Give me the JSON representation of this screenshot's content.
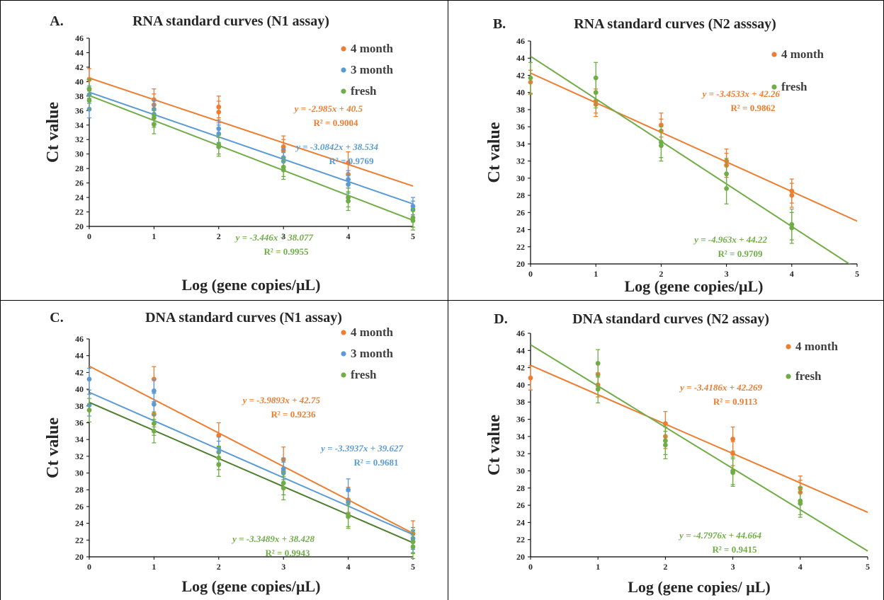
{
  "colors": {
    "orange": "#ED7D31",
    "blue": "#5B9BD5",
    "green": "#70AD47",
    "darkgreen": "#4E7F2E",
    "axis": "#000000",
    "grid": "#D9D9D9"
  },
  "chart_data": [
    {
      "type": "scatter",
      "panel_label": "A.",
      "title": "RNA standard curves (N1 assay)",
      "xlabel": "Log (gene copies/µL)",
      "ylabel": "Ct value",
      "xlim": [
        0,
        5
      ],
      "ylim": [
        20,
        46
      ],
      "x_ticks": [
        0,
        1,
        2,
        3,
        4,
        5
      ],
      "y_ticks": [
        20,
        22,
        24,
        26,
        28,
        30,
        32,
        34,
        36,
        38,
        40,
        42,
        44,
        46
      ],
      "grid": false,
      "legend_position": "top-right",
      "series": [
        {
          "name": "4 month",
          "color": "orange",
          "points": [
            [
              0,
              40.3
            ],
            [
              0,
              39.0
            ],
            [
              1,
              37.5
            ],
            [
              1,
              36.8
            ],
            [
              2,
              36.5
            ],
            [
              2,
              35.8
            ],
            [
              3,
              31.0
            ],
            [
              3,
              30.5
            ],
            [
              4,
              28.8
            ],
            [
              4,
              27.2
            ]
          ],
          "error": 1.5,
          "fit": {
            "slope": -2.985,
            "intercept": 40.5,
            "equation": "y = -2.985x + 40.5",
            "r2": "R² = 0.9004"
          }
        },
        {
          "name": "3 month",
          "color": "blue",
          "points": [
            [
              0,
              38.2
            ],
            [
              0,
              36.2
            ],
            [
              1,
              36.2
            ],
            [
              1,
              35.5
            ],
            [
              2,
              33.5
            ],
            [
              2,
              32.8
            ],
            [
              3,
              29.5
            ],
            [
              3,
              29.0
            ],
            [
              4,
              26.5
            ],
            [
              4,
              25.8
            ],
            [
              5,
              22.8
            ],
            [
              5,
              22.3
            ]
          ],
          "error": 1.2,
          "fit": {
            "slope": -3.0842,
            "intercept": 38.534,
            "equation": "y = -3.0842x + 38.534",
            "r2": "R² = 0.9769"
          }
        },
        {
          "name": "fresh",
          "color": "green",
          "points": [
            [
              0,
              39.0
            ],
            [
              0,
              37.4
            ],
            [
              1,
              35.0
            ],
            [
              1,
              34.1
            ],
            [
              2,
              31.3
            ],
            [
              2,
              31.0
            ],
            [
              3,
              28.2
            ],
            [
              3,
              27.8
            ],
            [
              4,
              24.0
            ],
            [
              4,
              23.5
            ],
            [
              5,
              21.2
            ],
            [
              5,
              20.8
            ]
          ],
          "error": 1.3,
          "fit": {
            "slope": -3.446,
            "intercept": 38.077,
            "equation": "y = -3.446x + 38.077",
            "r2": "R² = 0.9955"
          }
        }
      ]
    },
    {
      "type": "scatter",
      "panel_label": "B.",
      "title": "RNA standard curves  (N2 asssay)",
      "xlabel": "Log (gene copies/µL)",
      "ylabel": "Ct value",
      "xlim": [
        0,
        5
      ],
      "ylim": [
        20,
        46
      ],
      "x_ticks": [
        0,
        1,
        2,
        3,
        4,
        5
      ],
      "y_ticks": [
        20,
        22,
        24,
        26,
        28,
        30,
        32,
        34,
        36,
        38,
        40,
        42,
        44,
        46
      ],
      "grid": false,
      "legend_position": "top-right",
      "series": [
        {
          "name": "4 month",
          "color": "orange",
          "points": [
            [
              0,
              41.2
            ],
            [
              1,
              39.0
            ],
            [
              1,
              38.6
            ],
            [
              2,
              36.2
            ],
            [
              2,
              35.5
            ],
            [
              3,
              32.0
            ],
            [
              3,
              31.5
            ],
            [
              4,
              28.5
            ],
            [
              4,
              28.0
            ]
          ],
          "error": 1.4,
          "fit": {
            "slope": -3.4533,
            "intercept": 42.26,
            "equation": "y = -3.4533x + 42.26",
            "r2": "R² = 0.9862"
          }
        },
        {
          "name": "fresh",
          "color": "green",
          "points": [
            [
              0,
              41.7
            ],
            [
              1,
              41.7
            ],
            [
              1,
              40.0
            ],
            [
              2,
              34.2
            ],
            [
              2,
              33.8
            ],
            [
              3,
              30.5
            ],
            [
              3,
              28.8
            ],
            [
              4,
              24.6
            ],
            [
              4,
              24.2
            ]
          ],
          "error": 1.8,
          "fit": {
            "slope": -4.963,
            "intercept": 44.22,
            "equation": "y = -4.963x + 44.22",
            "r2": "R² = 0.9709"
          }
        }
      ]
    },
    {
      "type": "scatter",
      "panel_label": "C.",
      "title": "DNA standard curves (N1 assay)",
      "xlabel": "Log (gene copies/µL)",
      "ylabel": "Ct value",
      "xlim": [
        0,
        5
      ],
      "ylim": [
        20,
        46
      ],
      "x_ticks": [
        0,
        1,
        2,
        3,
        4,
        5
      ],
      "y_ticks": [
        20,
        22,
        24,
        26,
        28,
        30,
        32,
        34,
        36,
        38,
        40,
        42,
        44,
        46
      ],
      "grid": false,
      "legend_position": "top-right",
      "series": [
        {
          "name": "4 month",
          "color": "orange",
          "points": [
            [
              1,
              41.2
            ],
            [
              1,
              37.0
            ],
            [
              2,
              34.5
            ],
            [
              3,
              31.6
            ],
            [
              3,
              30.2
            ],
            [
              4,
              26.8
            ],
            [
              5,
              22.8
            ]
          ],
          "error": 1.5,
          "fit": {
            "slope": -3.9893,
            "intercept": 42.75,
            "equation": "y = -3.9893x + 42.75",
            "r2": "R² = 0.9236"
          }
        },
        {
          "name": "3 month",
          "color": "blue",
          "points": [
            [
              0,
              41.2
            ],
            [
              0,
              38.1
            ],
            [
              1,
              39.8
            ],
            [
              1,
              38.2
            ],
            [
              2,
              33.0
            ],
            [
              2,
              32.5
            ],
            [
              3,
              30.5
            ],
            [
              3,
              30.0
            ],
            [
              4,
              28.0
            ],
            [
              4,
              26.5
            ],
            [
              5,
              22.2
            ],
            [
              5,
              21.8
            ]
          ],
          "error": 1.3,
          "fit": {
            "slope": -3.3937,
            "intercept": 39.627,
            "equation": "y = -3.3937x + 39.627",
            "r2": "R² = 0.9681"
          }
        },
        {
          "name": "fresh",
          "color": "green",
          "points": [
            [
              0,
              37.5
            ],
            [
              1,
              35.9
            ],
            [
              1,
              35.0
            ],
            [
              2,
              31.8
            ],
            [
              2,
              31.0
            ],
            [
              3,
              28.8
            ],
            [
              3,
              28.2
            ],
            [
              4,
              25.0
            ],
            [
              4,
              24.8
            ],
            [
              5,
              21.8
            ],
            [
              5,
              21.2
            ]
          ],
          "error": 1.4,
          "fit": {
            "slope": -3.3489,
            "intercept": 38.428,
            "equation": "y = -3.3489x + 38.428",
            "r2": "R² = 0.9943"
          }
        }
      ]
    },
    {
      "type": "scatter",
      "panel_label": "D.",
      "title": "DNA standard curves (N2 assay)",
      "xlabel": "Log (gene copies/ µL)",
      "ylabel": "Ct value",
      "xlim": [
        0,
        5
      ],
      "ylim": [
        20,
        46
      ],
      "x_ticks": [
        0,
        1,
        2,
        3,
        4,
        5
      ],
      "y_ticks": [
        20,
        22,
        24,
        26,
        28,
        30,
        32,
        34,
        36,
        38,
        40,
        42,
        44,
        46
      ],
      "grid": false,
      "legend_position": "top-right",
      "series": [
        {
          "name": "4 month",
          "color": "orange",
          "points": [
            [
              0,
              40.8
            ],
            [
              1,
              41.2
            ],
            [
              1,
              40.0
            ],
            [
              2,
              35.5
            ],
            [
              2,
              34.0
            ],
            [
              3,
              33.7
            ],
            [
              3,
              32.0
            ],
            [
              4,
              28.0
            ],
            [
              4,
              27.5
            ]
          ],
          "error": 1.4,
          "fit": {
            "slope": -3.4186,
            "intercept": 42.269,
            "equation": "y = -3.4186x + 42.269",
            "r2": "R² = 0.9113"
          }
        },
        {
          "name": "fresh",
          "color": "green",
          "points": [
            [
              1,
              42.5
            ],
            [
              1,
              39.5
            ],
            [
              2,
              33.5
            ],
            [
              2,
              33.0
            ],
            [
              3,
              30.0
            ],
            [
              3,
              29.8
            ],
            [
              4,
              26.5
            ],
            [
              4,
              26.2
            ]
          ],
          "error": 1.6,
          "fit": {
            "slope": -4.7976,
            "intercept": 44.664,
            "equation": "y = -4.7976x + 44.664",
            "r2": "R² = 0.9415"
          }
        }
      ]
    }
  ]
}
